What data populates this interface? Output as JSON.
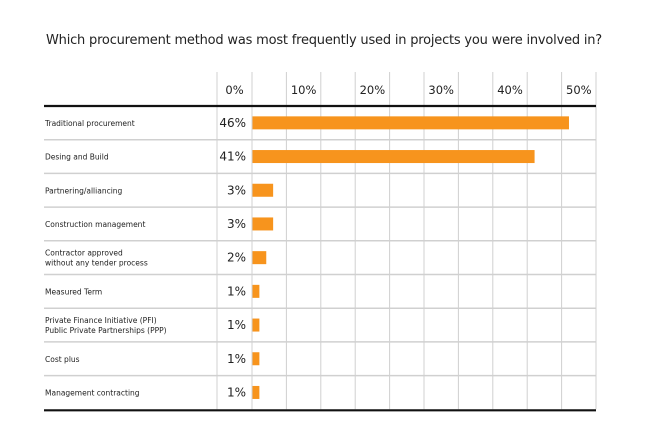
{
  "chart_data": {
    "type": "bar",
    "orientation": "horizontal",
    "title": "Which procurement method was most frequently used in projects you were involved in?",
    "xlabel": "",
    "ylabel": "",
    "xlim": [
      0,
      50
    ],
    "x_ticks": [
      "0%",
      "10%",
      "20%",
      "30%",
      "40%",
      "50%"
    ],
    "grid": true,
    "bar_color": "#f7941d",
    "categories": [
      [
        "Traditional procurement"
      ],
      [
        "Desing and Build"
      ],
      [
        "Partnering/alliancing"
      ],
      [
        "Construction management"
      ],
      [
        "Contractor approved",
        "without any tender process"
      ],
      [
        "Measured Term"
      ],
      [
        "Private Finance Initiative (PFI)",
        "Public Private Partnerships (PPP)"
      ],
      [
        "Cost plus"
      ],
      [
        "Management contracting"
      ]
    ],
    "values": [
      46,
      41,
      3,
      3,
      2,
      1,
      1,
      1,
      1
    ],
    "value_labels": [
      "46%",
      "41%",
      "3%",
      "3%",
      "2%",
      "1%",
      "1%",
      "1%",
      "1%"
    ]
  }
}
